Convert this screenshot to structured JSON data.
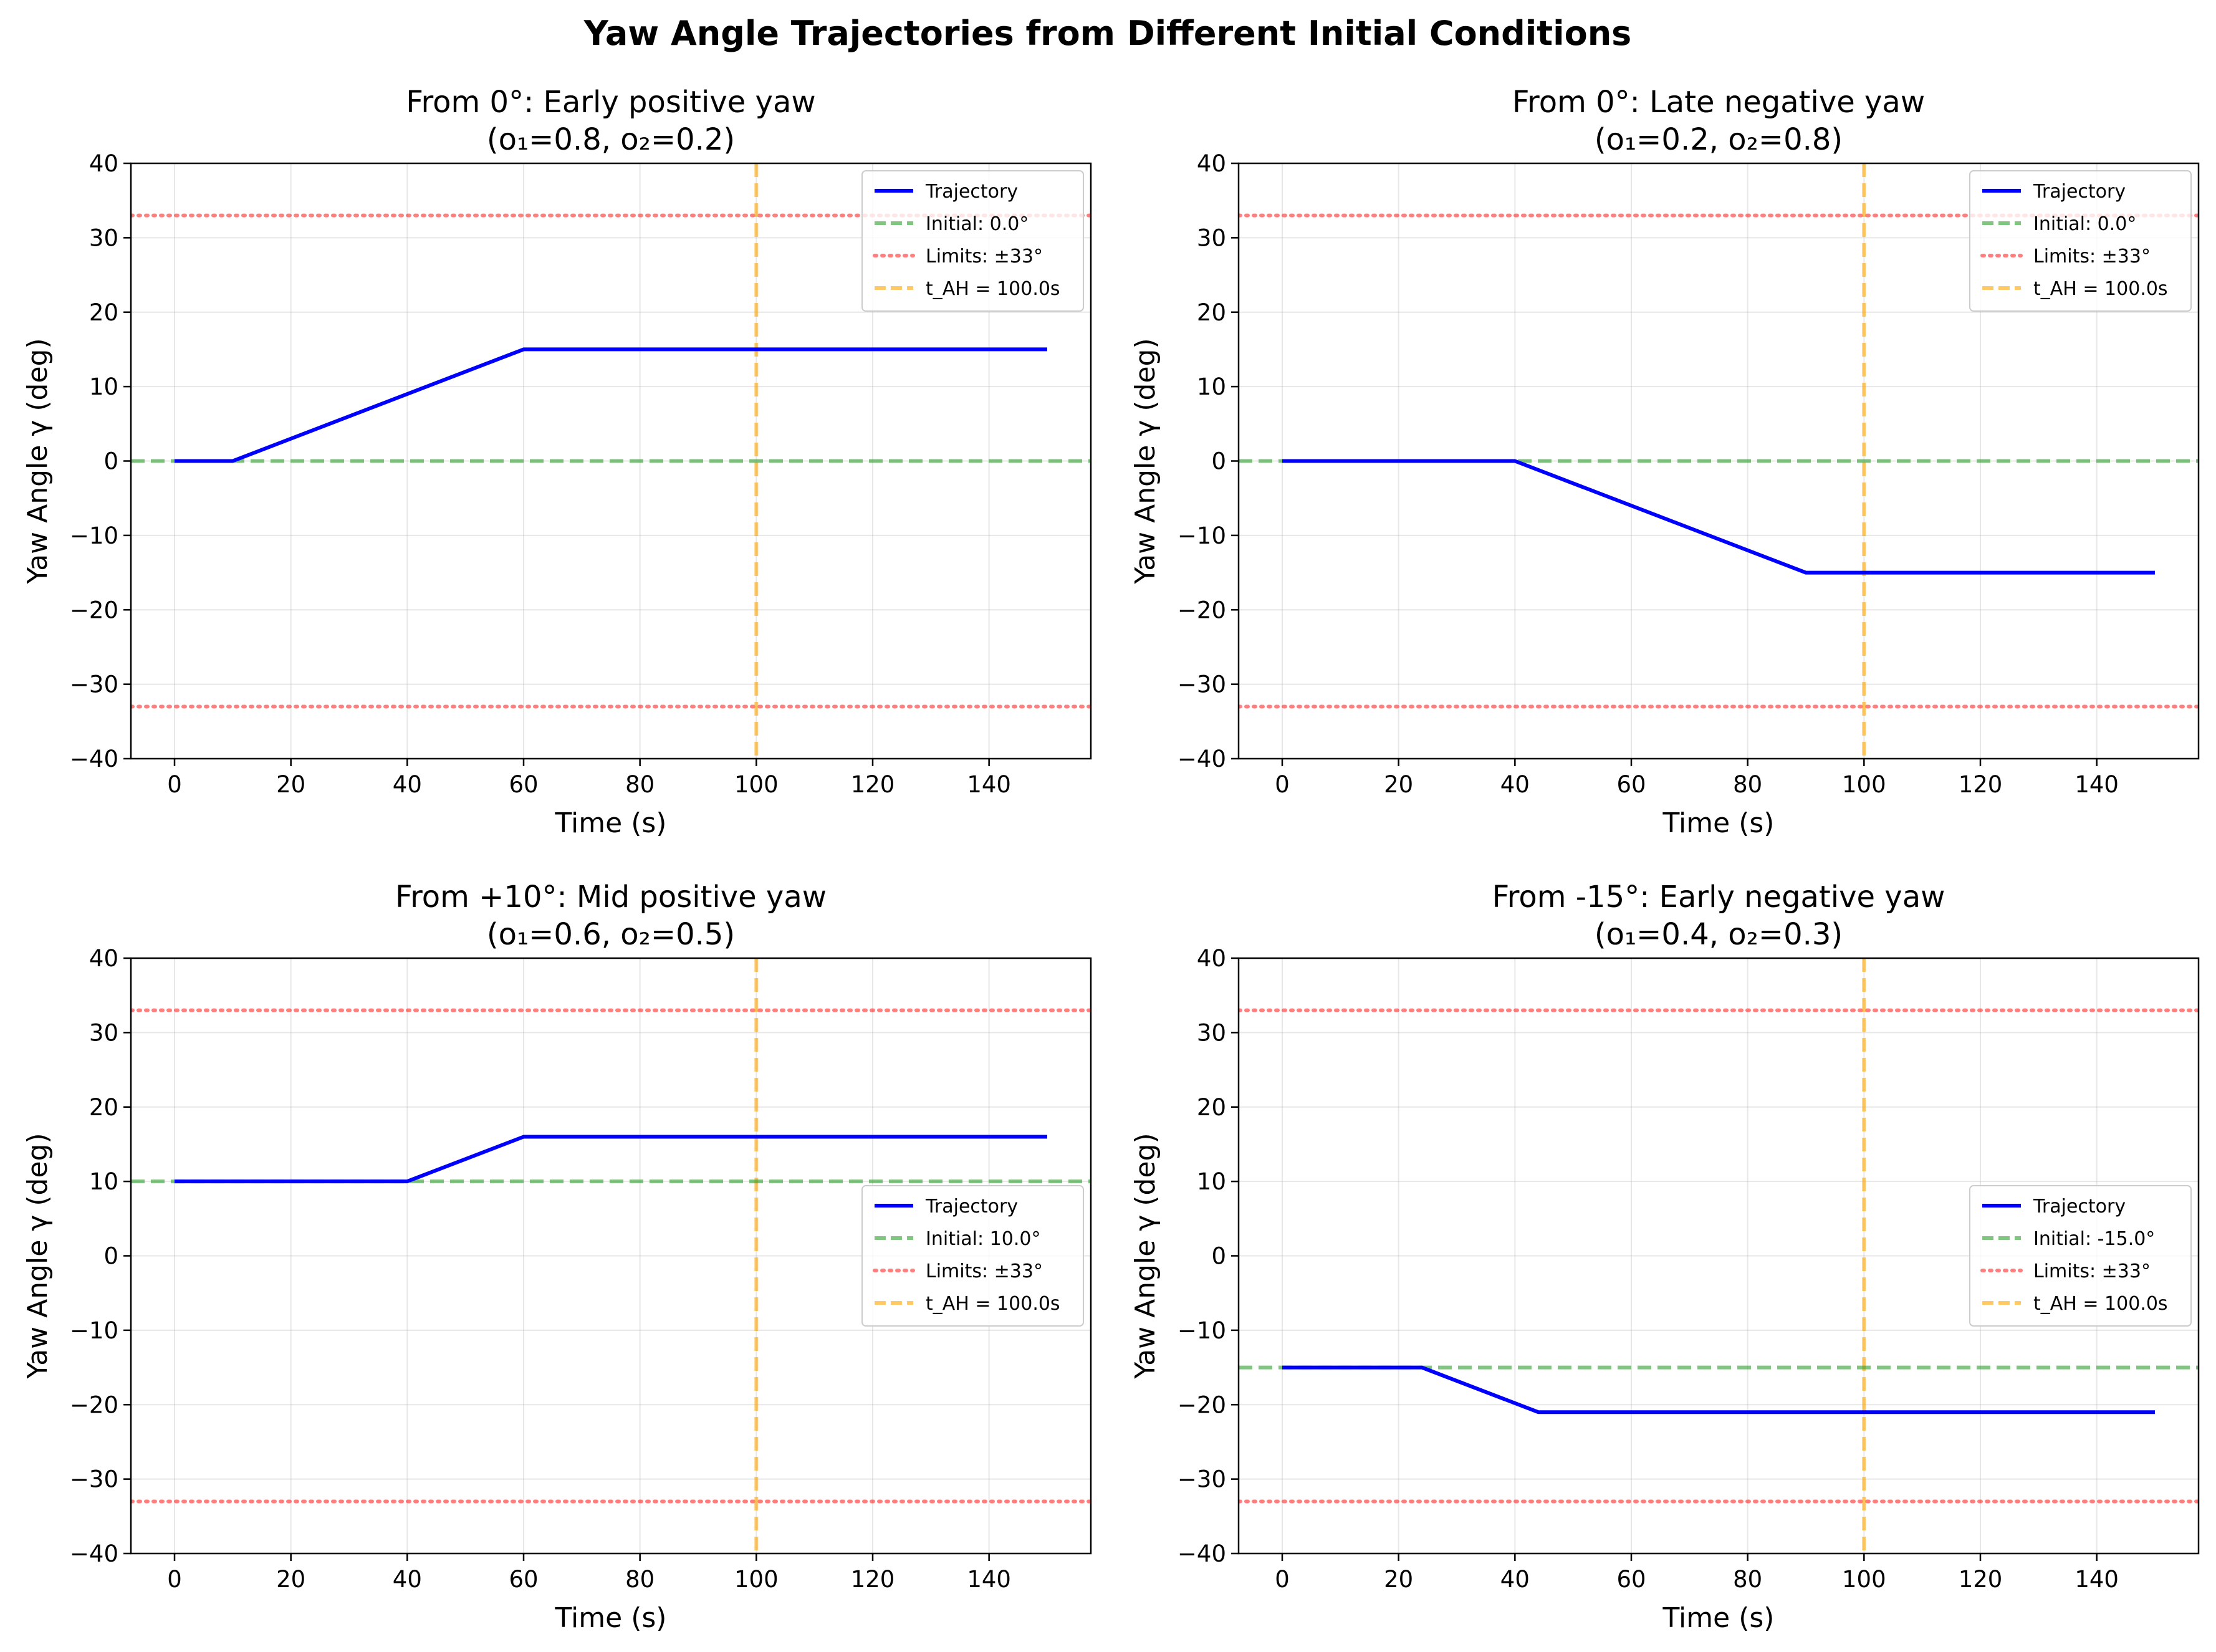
{
  "suptitle": "Yaw Angle Trajectories from Different Initial Conditions",
  "chart_data": [
    {
      "type": "line",
      "title_line1": "From 0°: Early positive yaw",
      "title_line2": "(o₁=0.8, o₂=0.2)",
      "xlabel": "Time (s)",
      "ylabel": "Yaw Angle γ (deg)",
      "xlim": [
        -7.5,
        157.5
      ],
      "ylim": [
        -40,
        40
      ],
      "xticks": [
        0,
        20,
        40,
        60,
        80,
        100,
        120,
        140
      ],
      "yticks": [
        -40,
        -30,
        -20,
        -10,
        0,
        10,
        20,
        30,
        40
      ],
      "grid": true,
      "legend_position": "top-right",
      "series": [
        {
          "name": "Trajectory",
          "color": "#0000ff",
          "style": "solid",
          "x": [
            0,
            10,
            60,
            150
          ],
          "y": [
            0,
            0,
            15,
            15
          ]
        }
      ],
      "initial": {
        "label": "Initial: 0.0°",
        "value": 0.0,
        "color": "#2ca02c"
      },
      "limits": {
        "label": "Limits: ±33°",
        "value": 33,
        "color": "#ff0000"
      },
      "t_ah": {
        "label": "t_AH = 100.0s",
        "value": 100,
        "color": "#ffa500"
      }
    },
    {
      "type": "line",
      "title_line1": "From 0°: Late negative yaw",
      "title_line2": "(o₁=0.2, o₂=0.8)",
      "xlabel": "Time (s)",
      "ylabel": "Yaw Angle γ (deg)",
      "xlim": [
        -7.5,
        157.5
      ],
      "ylim": [
        -40,
        40
      ],
      "xticks": [
        0,
        20,
        40,
        60,
        80,
        100,
        120,
        140
      ],
      "yticks": [
        -40,
        -30,
        -20,
        -10,
        0,
        10,
        20,
        30,
        40
      ],
      "grid": true,
      "legend_position": "top-right",
      "series": [
        {
          "name": "Trajectory",
          "color": "#0000ff",
          "style": "solid",
          "x": [
            0,
            40,
            90,
            150
          ],
          "y": [
            0,
            0,
            -15,
            -15
          ]
        }
      ],
      "initial": {
        "label": "Initial: 0.0°",
        "value": 0.0,
        "color": "#2ca02c"
      },
      "limits": {
        "label": "Limits: ±33°",
        "value": 33,
        "color": "#ff0000"
      },
      "t_ah": {
        "label": "t_AH = 100.0s",
        "value": 100,
        "color": "#ffa500"
      }
    },
    {
      "type": "line",
      "title_line1": "From +10°: Mid positive yaw",
      "title_line2": "(o₁=0.6, o₂=0.5)",
      "xlabel": "Time (s)",
      "ylabel": "Yaw Angle γ (deg)",
      "xlim": [
        -7.5,
        157.5
      ],
      "ylim": [
        -40,
        40
      ],
      "xticks": [
        0,
        20,
        40,
        60,
        80,
        100,
        120,
        140
      ],
      "yticks": [
        -40,
        -30,
        -20,
        -10,
        0,
        10,
        20,
        30,
        40
      ],
      "grid": true,
      "legend_position": "center-right",
      "series": [
        {
          "name": "Trajectory",
          "color": "#0000ff",
          "style": "solid",
          "x": [
            0,
            40,
            60,
            150
          ],
          "y": [
            10,
            10,
            16,
            16
          ]
        }
      ],
      "initial": {
        "label": "Initial: 10.0°",
        "value": 10.0,
        "color": "#2ca02c"
      },
      "limits": {
        "label": "Limits: ±33°",
        "value": 33,
        "color": "#ff0000"
      },
      "t_ah": {
        "label": "t_AH = 100.0s",
        "value": 100,
        "color": "#ffa500"
      }
    },
    {
      "type": "line",
      "title_line1": "From -15°: Early negative yaw",
      "title_line2": "(o₁=0.4, o₂=0.3)",
      "xlabel": "Time (s)",
      "ylabel": "Yaw Angle γ (deg)",
      "xlim": [
        -7.5,
        157.5
      ],
      "ylim": [
        -40,
        40
      ],
      "xticks": [
        0,
        20,
        40,
        60,
        80,
        100,
        120,
        140
      ],
      "yticks": [
        -40,
        -30,
        -20,
        -10,
        0,
        10,
        20,
        30,
        40
      ],
      "grid": true,
      "legend_position": "center-right",
      "series": [
        {
          "name": "Trajectory",
          "color": "#0000ff",
          "style": "solid",
          "x": [
            0,
            24,
            44,
            150
          ],
          "y": [
            -15,
            -15,
            -21,
            -21
          ]
        }
      ],
      "initial": {
        "label": "Initial: -15.0°",
        "value": -15.0,
        "color": "#2ca02c"
      },
      "limits": {
        "label": "Limits: ±33°",
        "value": 33,
        "color": "#ff0000"
      },
      "t_ah": {
        "label": "t_AH = 100.0s",
        "value": 100,
        "color": "#ffa500"
      }
    }
  ]
}
